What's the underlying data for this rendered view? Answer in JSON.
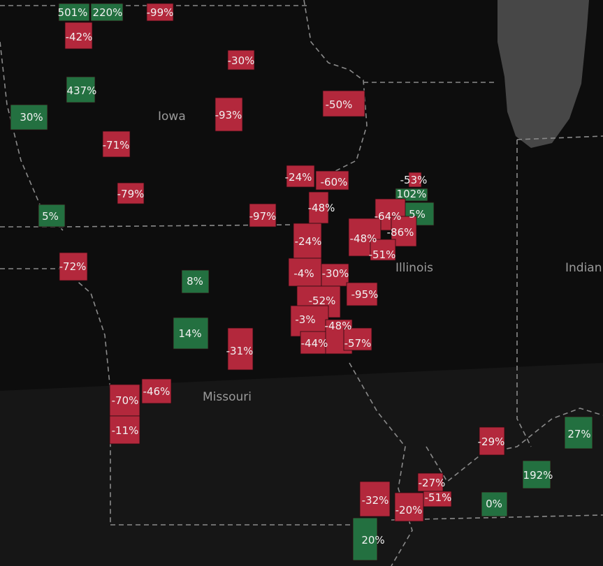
{
  "map": {
    "colors": {
      "decrease": "#b3283c",
      "increase": "#237040",
      "background": "#0d0d0d",
      "lake": "#474747",
      "state_label": "#9a9a9a"
    },
    "state_labels": [
      "Iowa",
      "Illinois",
      "Indian",
      "Missouri"
    ],
    "counties": [
      {
        "label": "501%",
        "change": 501
      },
      {
        "label": "220%",
        "change": 220
      },
      {
        "label": "-99%",
        "change": -99
      },
      {
        "label": "-42%",
        "change": -42
      },
      {
        "label": "-30%",
        "change": -30
      },
      {
        "label": "437%",
        "change": 437
      },
      {
        "label": "30%",
        "change": 30
      },
      {
        "label": "-50%",
        "change": -50
      },
      {
        "label": "-93%",
        "change": -93
      },
      {
        "label": "-71%",
        "change": -71
      },
      {
        "label": "-24%",
        "change": -24
      },
      {
        "label": "-60%",
        "change": -60
      },
      {
        "label": "-53%",
        "change": -53
      },
      {
        "label": "102%",
        "change": 102
      },
      {
        "label": "-79%",
        "change": -79
      },
      {
        "label": "5%",
        "change": 5
      },
      {
        "label": "-97%",
        "change": -97
      },
      {
        "label": "-48%",
        "change": -48
      },
      {
        "label": "5%",
        "change": 5
      },
      {
        "label": "-64%",
        "change": -64
      },
      {
        "label": "-86%",
        "change": -86
      },
      {
        "label": "-48%",
        "change": -48
      },
      {
        "label": "-51%",
        "change": -51
      },
      {
        "label": "-24%",
        "change": -24
      },
      {
        "label": "-72%",
        "change": -72
      },
      {
        "label": "8%",
        "change": 8
      },
      {
        "label": "-4%",
        "change": -4
      },
      {
        "label": "-30%",
        "change": -30
      },
      {
        "label": "-95%",
        "change": -95
      },
      {
        "label": "-52%",
        "change": -52
      },
      {
        "label": "14%",
        "change": 14
      },
      {
        "label": "-3%",
        "change": -3
      },
      {
        "label": "-31%",
        "change": -31
      },
      {
        "label": "-44%",
        "change": -44
      },
      {
        "label": "-48%",
        "change": -48
      },
      {
        "label": "-57%",
        "change": -57
      },
      {
        "label": "-46%",
        "change": -46
      },
      {
        "label": "-70%",
        "change": -70
      },
      {
        "label": "-11%",
        "change": -11
      },
      {
        "label": "-29%",
        "change": -29
      },
      {
        "label": "27%",
        "change": 27
      },
      {
        "label": "192%",
        "change": 192
      },
      {
        "label": "-27%",
        "change": -27
      },
      {
        "label": "-32%",
        "change": -32
      },
      {
        "label": "-51%",
        "change": -51
      },
      {
        "label": "-20%",
        "change": -20
      },
      {
        "label": "0%",
        "change": 0
      },
      {
        "label": "20%",
        "change": 20
      }
    ]
  }
}
